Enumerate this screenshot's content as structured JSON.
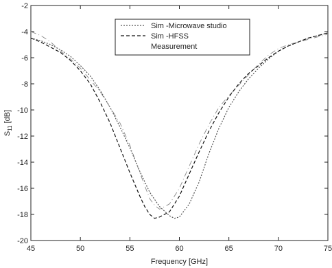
{
  "chart_data": {
    "type": "line",
    "title": "",
    "xlabel": "Frequency [GHz]",
    "ylabel_main": "S",
    "ylabel_sub": "11",
    "ylabel_unit": " [dB]",
    "xlim": [
      45,
      75
    ],
    "ylim": [
      -20,
      -2
    ],
    "xticks": [
      45,
      50,
      55,
      60,
      65,
      70,
      75
    ],
    "yticks": [
      -2,
      -4,
      -6,
      -8,
      -10,
      -12,
      -14,
      -16,
      -18,
      -20
    ],
    "grid": false,
    "legend_position": "top-center",
    "series": [
      {
        "name": "Sim -Microwave studio",
        "style": "dotted",
        "color": "#555555",
        "x": [
          45,
          46,
          47,
          48,
          49,
          50,
          51,
          52,
          53,
          54,
          55,
          56,
          57,
          58,
          59,
          59.5,
          60,
          61,
          62,
          63,
          64,
          65,
          66,
          67,
          68,
          69,
          70,
          71,
          72,
          73,
          74,
          75
        ],
        "y": [
          -4.5,
          -4.7,
          -5.0,
          -5.4,
          -5.9,
          -6.6,
          -7.4,
          -8.5,
          -9.8,
          -11.3,
          -12.9,
          -14.7,
          -16.3,
          -17.4,
          -18.1,
          -18.3,
          -18.2,
          -17.2,
          -15.5,
          -13.3,
          -11.4,
          -9.8,
          -8.6,
          -7.6,
          -6.8,
          -6.1,
          -5.5,
          -5.1,
          -4.8,
          -4.5,
          -4.3,
          -4.1
        ]
      },
      {
        "name": "Sim -HFSS",
        "style": "dashed",
        "color": "#111111",
        "x": [
          45,
          46,
          47,
          48,
          49,
          50,
          51,
          52,
          53,
          54,
          55,
          56,
          56.5,
          57,
          57.5,
          58,
          59,
          60,
          61,
          62,
          63,
          64,
          65,
          66,
          67,
          68,
          69,
          70,
          71,
          72,
          73,
          74,
          75
        ],
        "y": [
          -4.5,
          -4.8,
          -5.2,
          -5.6,
          -6.2,
          -7.0,
          -8.0,
          -9.4,
          -11.0,
          -12.9,
          -14.8,
          -16.6,
          -17.4,
          -18.0,
          -18.3,
          -18.2,
          -17.8,
          -16.6,
          -14.9,
          -13.2,
          -11.6,
          -10.2,
          -9.0,
          -8.0,
          -7.2,
          -6.6,
          -6.0,
          -5.5,
          -5.1,
          -4.8,
          -4.5,
          -4.3,
          -4.1
        ]
      },
      {
        "name": "Measurement",
        "style": "solid-faint",
        "color": "#888888",
        "x": [
          45,
          46,
          47,
          48,
          49,
          50,
          51,
          52,
          53,
          54,
          55,
          56,
          57,
          57.5,
          58,
          59,
          60,
          61,
          62,
          63,
          64,
          65,
          66,
          67,
          68,
          69,
          70,
          71,
          72,
          73,
          74,
          75
        ],
        "y": [
          -4.0,
          -4.3,
          -4.8,
          -5.5,
          -6.1,
          -6.8,
          -7.7,
          -8.6,
          -9.8,
          -11.0,
          -12.7,
          -14.8,
          -16.8,
          -17.3,
          -17.6,
          -17.2,
          -16.0,
          -14.3,
          -12.6,
          -11.1,
          -9.8,
          -8.9,
          -8.1,
          -7.3,
          -6.5,
          -5.8,
          -5.3,
          -5.0,
          -4.8,
          -4.6,
          -4.4,
          -4.2
        ]
      }
    ]
  }
}
